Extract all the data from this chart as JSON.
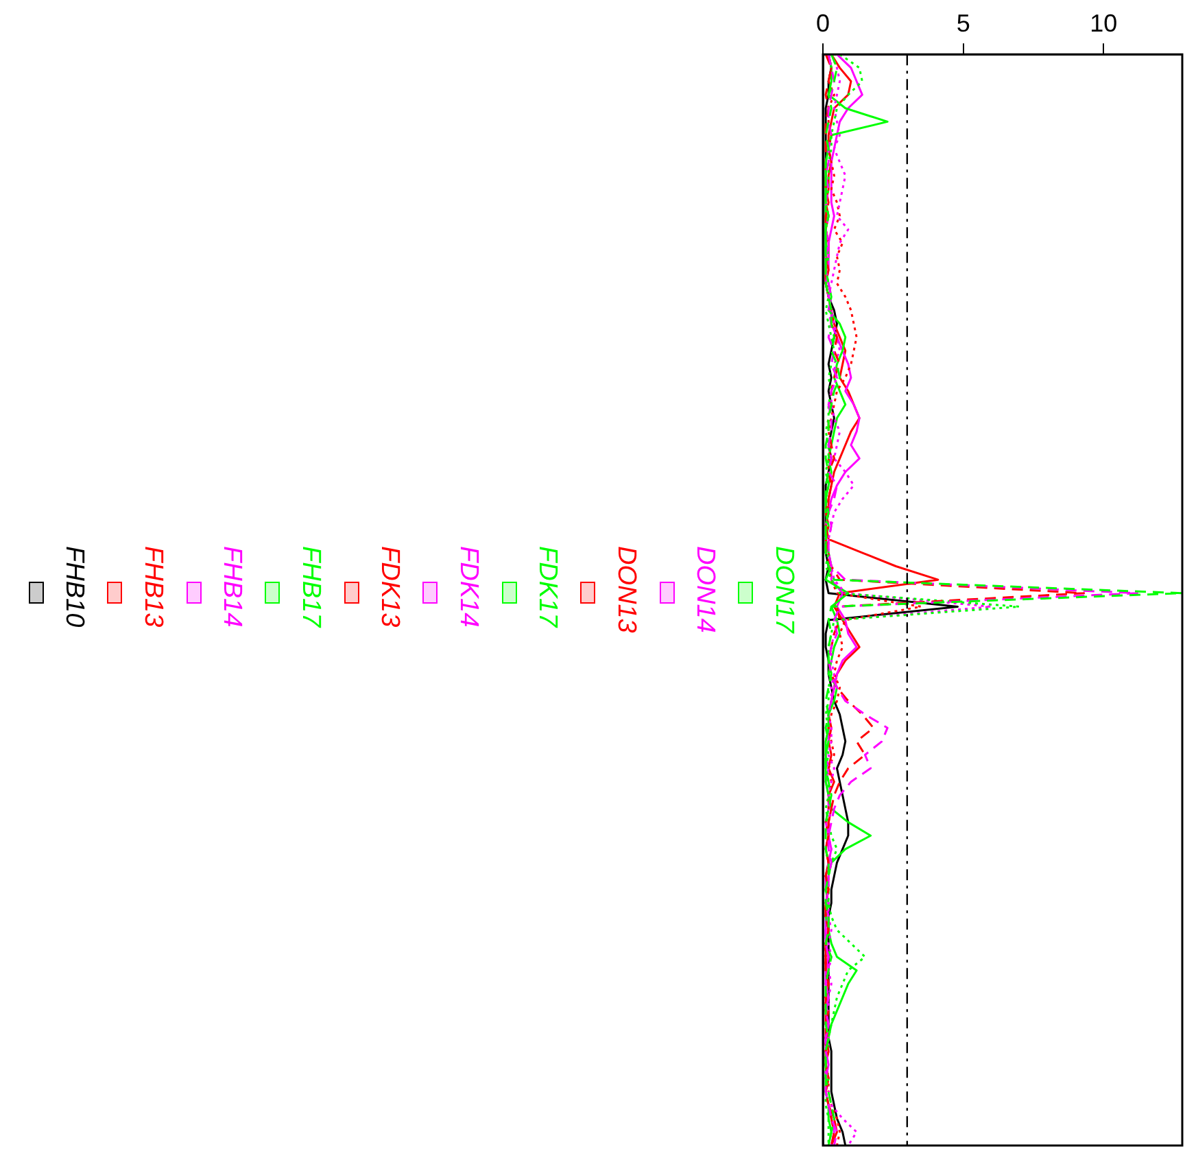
{
  "chart_data": {
    "type": "line",
    "orientation": "horizontal",
    "legend": "left",
    "categories": [
      null,
      null,
      null,
      null,
      null,
      null,
      null,
      null,
      null,
      null,
      null,
      null,
      null,
      null,
      null,
      null,
      null,
      null,
      null,
      null,
      null,
      null,
      null,
      null,
      null,
      null,
      null,
      null,
      null,
      null,
      null,
      null,
      null,
      null,
      null,
      null,
      null,
      null,
      null,
      null,
      null,
      null,
      null,
      null,
      null,
      null,
      null,
      null,
      null,
      null,
      null,
      null,
      null,
      null,
      null,
      null,
      null,
      null,
      null,
      null,
      null,
      null,
      null,
      null,
      null,
      null,
      null,
      null,
      null,
      null,
      null,
      null,
      null,
      null,
      null,
      null,
      null,
      null,
      null,
      null,
      null,
      null
    ],
    "xlim": [
      0,
      12.8
    ],
    "xticks": [
      0,
      5,
      10
    ],
    "ref_lines": [
      {
        "axis": "x",
        "value": 3,
        "line_style": "dashdot",
        "color": "#000000"
      }
    ],
    "series": [
      {
        "name": "DON17",
        "color": "#00ff00",
        "line_style": "dashed",
        "values": [
          0.3,
          0.5,
          0.4,
          0.2,
          0.3,
          0.2,
          0.1,
          0.2,
          0.1,
          0.1,
          0.1,
          0.1,
          0.2,
          0.1,
          0.1,
          0.1,
          0.1,
          0.1,
          0.2,
          0.3,
          0.3,
          0.4,
          0.3,
          0.5,
          0.6,
          0.4,
          0.3,
          0.2,
          0.2,
          0.1,
          0.1,
          0.2,
          0.1,
          0.1,
          0.2,
          0.1,
          0.1,
          0.1,
          0.2,
          0.4,
          12.8,
          0.3,
          0.2,
          0.3,
          0.2,
          0.2,
          0.3,
          0.2,
          0.1,
          0.2,
          0.1,
          0.2,
          0.1,
          0.1,
          0.2,
          0.3,
          0.2,
          0.1,
          0.1,
          0.1,
          0.2,
          0.2,
          0.1,
          0.1,
          0.2,
          0.2,
          0.1,
          0.3,
          0.2,
          0.1,
          0.1,
          0.1,
          0.1,
          0.2,
          0.1,
          0.1,
          0.1,
          0.2,
          0.3,
          0.4,
          0.3,
          0.2
        ]
      },
      {
        "name": "DON14",
        "color": "#ff00ff",
        "line_style": "dashed",
        "values": [
          0.2,
          0.3,
          0.4,
          0.3,
          0.2,
          0.2,
          0.3,
          0.2,
          0.2,
          0.1,
          0.2,
          0.1,
          0.2,
          0.1,
          0.2,
          0.1,
          0.1,
          0.2,
          0.3,
          0.2,
          0.3,
          0.2,
          0.4,
          0.3,
          0.5,
          0.3,
          0.2,
          0.3,
          0.3,
          0.2,
          0.3,
          0.2,
          0.5,
          0.4,
          0.2,
          0.3,
          0.2,
          0.2,
          0.3,
          0.8,
          11.2,
          0.6,
          0.4,
          0.5,
          0.3,
          0.2,
          0.3,
          0.5,
          0.8,
          1.5,
          2.3,
          2.1,
          1.5,
          1.7,
          1.0,
          0.6,
          0.4,
          0.3,
          0.2,
          0.2,
          0.3,
          0.2,
          0.2,
          0.1,
          0.2,
          0.1,
          0.1,
          0.2,
          0.2,
          0.1,
          0.2,
          0.1,
          0.2,
          0.1,
          0.1,
          0.2,
          0.1,
          0.1,
          0.2,
          0.3,
          0.5,
          0.4
        ]
      },
      {
        "name": "DON13",
        "color": "#ff0000",
        "line_style": "dashed",
        "values": [
          0.1,
          0.3,
          0.2,
          0.1,
          0.2,
          0.1,
          0.1,
          0.1,
          0.1,
          0.1,
          0.1,
          0.2,
          0.1,
          0.1,
          0.2,
          0.1,
          0.2,
          0.1,
          0.2,
          0.3,
          0.3,
          0.5,
          0.4,
          0.6,
          0.4,
          0.3,
          0.3,
          0.2,
          0.2,
          0.3,
          0.4,
          0.2,
          0.3,
          0.2,
          0.2,
          0.1,
          0.2,
          0.1,
          0.3,
          0.6,
          9.3,
          0.5,
          0.6,
          0.4,
          0.3,
          0.2,
          0.3,
          0.5,
          0.9,
          1.4,
          1.8,
          1.2,
          1.5,
          0.9,
          0.6,
          0.4,
          0.3,
          0.2,
          0.2,
          0.1,
          0.2,
          0.1,
          0.2,
          0.1,
          0.1,
          0.2,
          0.1,
          0.1,
          0.1,
          0.2,
          0.1,
          0.2,
          0.1,
          0.1,
          0.2,
          0.1,
          0.2,
          0.1,
          0.2,
          0.3,
          0.4,
          0.3
        ]
      },
      {
        "name": "FDK17",
        "color": "#00ff00",
        "line_style": "dotted",
        "values": [
          0.6,
          1.3,
          1.4,
          0.9,
          0.5,
          0.4,
          0.3,
          0.3,
          0.2,
          0.2,
          0.2,
          0.1,
          0.2,
          0.1,
          0.1,
          0.2,
          0.1,
          0.2,
          0.2,
          0.1,
          0.2,
          0.3,
          0.4,
          0.3,
          0.2,
          0.3,
          0.2,
          0.2,
          0.1,
          0.2,
          0.2,
          0.1,
          0.2,
          0.1,
          0.2,
          0.1,
          0.1,
          0.2,
          0.1,
          0.3,
          0.6,
          7.0,
          0.4,
          0.3,
          0.2,
          0.2,
          0.3,
          0.2,
          0.2,
          0.1,
          0.2,
          0.1,
          0.2,
          0.1,
          0.2,
          0.2,
          0.1,
          0.2,
          0.3,
          0.5,
          0.3,
          0.2,
          0.2,
          0.2,
          0.3,
          0.5,
          1.0,
          1.5,
          0.9,
          0.7,
          0.5,
          0.4,
          0.3,
          0.2,
          0.2,
          0.1,
          0.2,
          0.1,
          0.1,
          0.2,
          0.2,
          0.2
        ]
      },
      {
        "name": "FDK14",
        "color": "#ff00ff",
        "line_style": "dotted",
        "values": [
          0.3,
          0.5,
          0.6,
          0.5,
          0.4,
          0.5,
          0.6,
          0.4,
          0.6,
          0.8,
          0.7,
          0.6,
          0.5,
          0.9,
          0.6,
          0.5,
          0.4,
          0.3,
          0.2,
          0.3,
          0.4,
          0.5,
          0.6,
          0.4,
          0.5,
          0.3,
          0.3,
          0.4,
          0.6,
          0.5,
          0.4,
          0.8,
          1.1,
          0.7,
          0.4,
          0.3,
          0.2,
          0.2,
          0.3,
          0.4,
          0.8,
          6.0,
          0.5,
          0.4,
          0.3,
          0.3,
          0.4,
          0.3,
          0.3,
          0.2,
          0.3,
          0.3,
          0.2,
          0.4,
          0.3,
          0.2,
          0.3,
          0.2,
          0.2,
          0.3,
          0.2,
          0.2,
          0.1,
          0.2,
          0.2,
          0.3,
          0.2,
          0.3,
          0.2,
          0.3,
          0.2,
          0.2,
          0.1,
          0.2,
          0.2,
          0.1,
          0.1,
          0.2,
          0.3,
          0.7,
          1.2,
          0.9
        ]
      },
      {
        "name": "FDK13",
        "color": "#ff0000",
        "line_style": "dotted",
        "values": [
          0.2,
          0.3,
          0.2,
          0.4,
          0.2,
          0.2,
          0.3,
          0.2,
          0.3,
          0.4,
          0.3,
          0.5,
          0.6,
          0.4,
          0.7,
          0.5,
          0.6,
          0.5,
          0.8,
          1.0,
          1.1,
          1.2,
          1.1,
          1.0,
          0.8,
          0.5,
          0.4,
          0.3,
          0.2,
          0.3,
          0.2,
          0.2,
          0.3,
          0.2,
          0.1,
          0.2,
          0.1,
          0.2,
          0.2,
          0.3,
          0.5,
          3.5,
          0.8,
          0.6,
          0.7,
          0.5,
          0.4,
          0.6,
          0.5,
          0.3,
          0.2,
          0.3,
          0.4,
          0.2,
          0.3,
          0.2,
          0.2,
          0.1,
          0.2,
          0.1,
          0.2,
          0.1,
          0.2,
          0.1,
          0.1,
          0.2,
          0.1,
          0.1,
          0.1,
          0.2,
          0.1,
          0.1,
          0.2,
          0.1,
          0.1,
          0.1,
          0.2,
          0.2,
          0.3,
          0.5,
          0.6,
          0.5
        ]
      },
      {
        "name": "FHB17",
        "color": "#00ff00",
        "line_style": "solid",
        "values": [
          0.2,
          0.3,
          0.3,
          0.2,
          0.8,
          2.3,
          0.3,
          0.2,
          0.1,
          0.1,
          0.1,
          0.1,
          0.1,
          0.1,
          0.1,
          0.1,
          0.1,
          0.2,
          0.3,
          0.2,
          0.6,
          0.8,
          0.7,
          0.5,
          0.4,
          0.6,
          0.8,
          0.5,
          0.4,
          0.3,
          0.2,
          0.3,
          0.2,
          0.1,
          0.1,
          0.2,
          0.1,
          0.2,
          0.3,
          0.1,
          0.9,
          0.3,
          0.5,
          0.6,
          0.4,
          0.3,
          0.2,
          0.5,
          0.4,
          0.2,
          0.2,
          0.1,
          0.1,
          0.1,
          0.1,
          0.2,
          0.3,
          0.9,
          1.7,
          0.8,
          0.3,
          0.2,
          0.1,
          0.2,
          0.1,
          0.2,
          0.3,
          0.5,
          1.2,
          0.9,
          0.7,
          0.5,
          0.3,
          0.2,
          0.1,
          0.1,
          0.1,
          0.1,
          0.2,
          0.2,
          0.3,
          0.2
        ]
      },
      {
        "name": "FHB14",
        "color": "#ff00ff",
        "line_style": "solid",
        "values": [
          0.5,
          1.0,
          1.2,
          1.4,
          0.9,
          0.6,
          0.5,
          0.4,
          0.3,
          0.3,
          0.3,
          0.3,
          0.4,
          0.3,
          0.2,
          0.2,
          0.2,
          0.1,
          0.2,
          0.3,
          0.3,
          0.5,
          0.7,
          0.9,
          1.0,
          0.8,
          1.1,
          1.3,
          1.2,
          1.0,
          1.3,
          0.8,
          0.5,
          0.3,
          0.2,
          0.1,
          0.1,
          0.2,
          0.3,
          0.3,
          0.7,
          0.5,
          0.8,
          0.9,
          1.2,
          0.7,
          0.5,
          0.4,
          0.3,
          0.2,
          0.2,
          0.2,
          0.1,
          0.2,
          0.1,
          0.2,
          0.2,
          0.1,
          0.2,
          0.3,
          0.2,
          0.1,
          0.1,
          0.2,
          0.1,
          0.1,
          0.1,
          0.2,
          0.1,
          0.1,
          0.2,
          0.1,
          0.2,
          0.1,
          0.1,
          0.2,
          0.1,
          0.1,
          0.2,
          0.3,
          0.4,
          0.3
        ]
      },
      {
        "name": "FHB13",
        "color": "#ff0000",
        "line_style": "solid",
        "values": [
          0.3,
          0.6,
          1.0,
          0.9,
          0.4,
          0.3,
          0.2,
          0.2,
          0.3,
          0.2,
          0.2,
          0.1,
          0.2,
          0.1,
          0.2,
          0.2,
          0.1,
          0.1,
          0.2,
          0.3,
          0.4,
          0.6,
          0.8,
          0.7,
          0.6,
          0.9,
          1.1,
          1.3,
          1.0,
          0.8,
          0.6,
          0.4,
          0.3,
          0.2,
          0.2,
          0.1,
          0.2,
          1.4,
          2.6,
          4.1,
          0.6,
          0.4,
          0.7,
          1.0,
          1.3,
          0.8,
          0.5,
          0.4,
          0.3,
          0.2,
          0.3,
          0.2,
          0.3,
          0.2,
          0.4,
          0.2,
          0.3,
          0.2,
          0.2,
          0.1,
          0.2,
          0.1,
          0.2,
          0.1,
          0.1,
          0.2,
          0.1,
          0.1,
          0.1,
          0.2,
          0.1,
          0.1,
          0.1,
          0.2,
          0.1,
          0.1,
          0.2,
          0.1,
          0.2,
          0.4,
          0.5,
          0.3
        ]
      },
      {
        "name": "FHB10",
        "color": "#000000",
        "line_style": "solid",
        "values": [
          0.2,
          0.3,
          0.2,
          0.2,
          0.1,
          0.1,
          0.1,
          0.1,
          0.1,
          0.1,
          0.1,
          0.1,
          0.1,
          0.1,
          0.1,
          0.1,
          0.1,
          0.1,
          0.2,
          0.4,
          0.5,
          0.4,
          0.3,
          0.2,
          0.3,
          0.2,
          0.3,
          0.4,
          0.3,
          0.2,
          0.3,
          0.2,
          0.1,
          0.1,
          0.1,
          0.1,
          0.1,
          0.1,
          0.2,
          0.1,
          0.2,
          4.8,
          0.2,
          0.1,
          0.1,
          0.2,
          0.2,
          0.3,
          0.4,
          0.6,
          0.7,
          0.8,
          0.7,
          0.5,
          0.6,
          0.7,
          0.8,
          0.9,
          0.9,
          0.7,
          0.5,
          0.4,
          0.3,
          0.3,
          0.2,
          0.2,
          0.2,
          0.2,
          0.2,
          0.2,
          0.2,
          0.2,
          0.2,
          0.2,
          0.3,
          0.3,
          0.3,
          0.3,
          0.4,
          0.5,
          0.7,
          0.8
        ]
      }
    ]
  }
}
